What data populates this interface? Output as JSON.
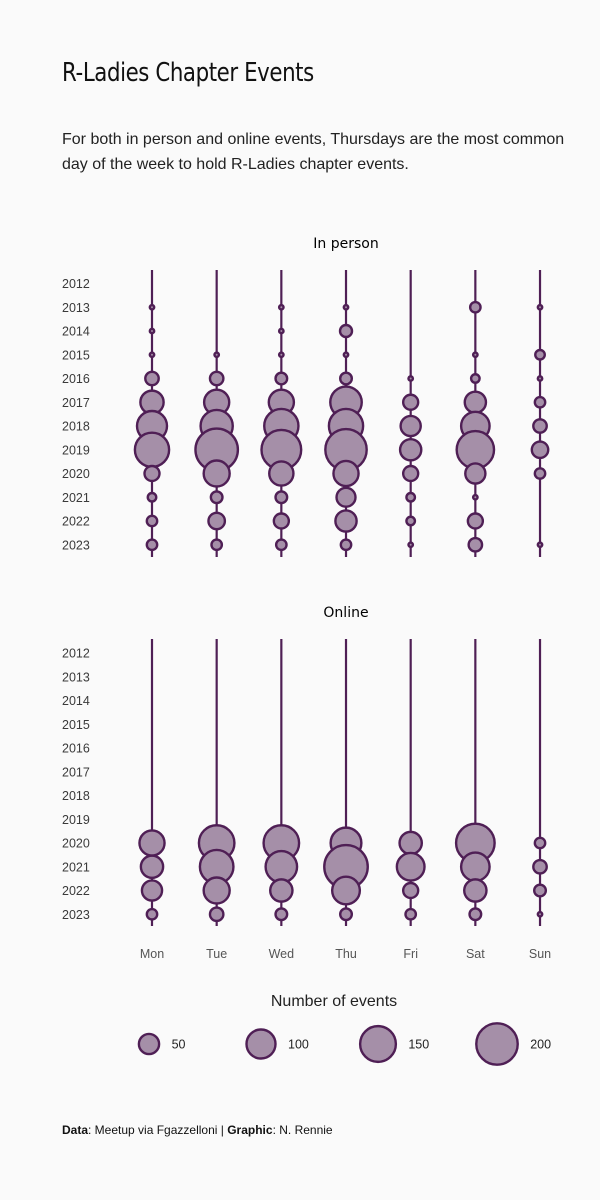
{
  "header": {
    "title": "R-Ladies Chapter Events",
    "subtitle": "For both in person and online events, Thursdays are the most common day of the week to hold R-Ladies chapter events."
  },
  "caption": {
    "data_label": "Data",
    "data_text": ": Meetup via Fgazzelloni | ",
    "graphic_label": "Graphic",
    "graphic_text": ": N. Rennie"
  },
  "colors": {
    "fill": "#a58fa8",
    "stroke": "#4f1f55",
    "line": "#4f1f55",
    "background": "#fafafa"
  },
  "chart_data": {
    "type": "scatter",
    "encoding": "bubble",
    "days": [
      "Mon",
      "Tue",
      "Wed",
      "Thu",
      "Fri",
      "Sat",
      "Sun"
    ],
    "years": [
      "2012",
      "2013",
      "2014",
      "2015",
      "2016",
      "2017",
      "2018",
      "2019",
      "2020",
      "2021",
      "2022",
      "2023"
    ],
    "size_legend": {
      "title": "Number of events",
      "values": [
        50,
        100,
        150,
        200
      ]
    },
    "panels": [
      {
        "name": "In person",
        "values": [
          [
            0,
            0,
            0,
            0,
            0,
            0,
            0
          ],
          [
            1,
            0,
            1,
            1,
            0,
            12,
            1
          ],
          [
            2,
            0,
            2,
            16,
            0,
            0,
            0
          ],
          [
            1,
            2,
            1,
            2,
            0,
            2,
            10
          ],
          [
            20,
            20,
            15,
            15,
            1,
            8,
            1
          ],
          [
            60,
            70,
            70,
            110,
            25,
            50,
            12
          ],
          [
            100,
            115,
            130,
            130,
            45,
            90,
            20
          ],
          [
            130,
            200,
            175,
            190,
            50,
            155,
            30
          ],
          [
            25,
            75,
            65,
            70,
            25,
            45,
            12
          ],
          [
            8,
            15,
            15,
            40,
            8,
            2,
            0
          ],
          [
            12,
            30,
            25,
            50,
            8,
            25,
            0
          ],
          [
            12,
            12,
            12,
            12,
            2,
            20,
            1
          ]
        ]
      },
      {
        "name": "Online",
        "values": [
          [
            0,
            0,
            0,
            0,
            0,
            0,
            0
          ],
          [
            0,
            0,
            0,
            0,
            0,
            0,
            0
          ],
          [
            0,
            0,
            0,
            0,
            0,
            0,
            0
          ],
          [
            0,
            0,
            0,
            0,
            0,
            0,
            0
          ],
          [
            0,
            0,
            0,
            0,
            0,
            0,
            0
          ],
          [
            0,
            0,
            0,
            0,
            0,
            0,
            0
          ],
          [
            0,
            0,
            0,
            0,
            0,
            0,
            0
          ],
          [
            0,
            0,
            0,
            0,
            0,
            0,
            0
          ],
          [
            70,
            140,
            140,
            105,
            55,
            165,
            12
          ],
          [
            55,
            125,
            110,
            210,
            85,
            90,
            20
          ],
          [
            45,
            75,
            55,
            85,
            25,
            55,
            15
          ],
          [
            12,
            20,
            15,
            15,
            12,
            15,
            2
          ]
        ]
      }
    ]
  }
}
